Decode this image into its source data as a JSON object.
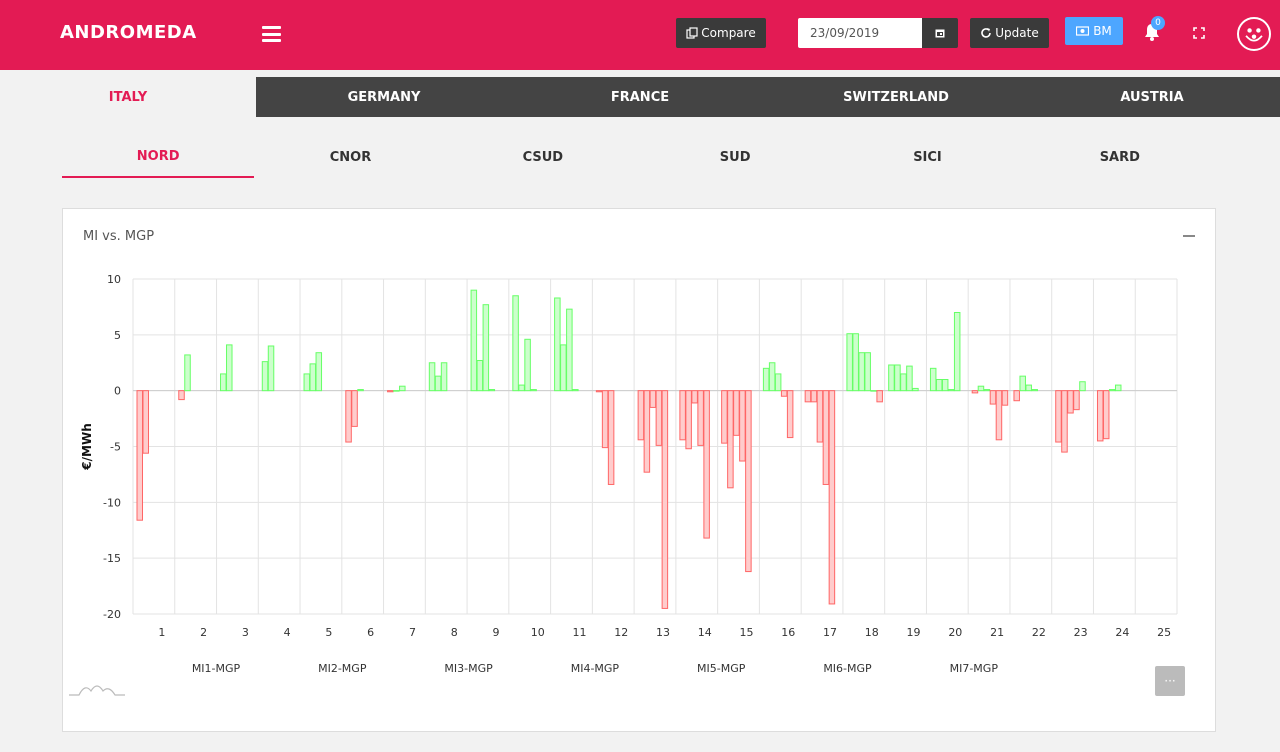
{
  "header": {
    "brand": "ANDROMEDA",
    "compare_label": "Compare",
    "date_value": "23/09/2019",
    "update_label": "Update",
    "bm_label": "BM",
    "notification_count": "0",
    "brand_color": "#e31b54"
  },
  "country_tabs": [
    {
      "label": "ITALY",
      "active": true
    },
    {
      "label": "GERMANY",
      "active": false
    },
    {
      "label": "FRANCE",
      "active": false
    },
    {
      "label": "SWITZERLAND",
      "active": false
    },
    {
      "label": "AUSTRIA",
      "active": false
    }
  ],
  "zone_tabs": [
    {
      "label": "NORD",
      "active": true
    },
    {
      "label": "CNOR",
      "active": false
    },
    {
      "label": "CSUD",
      "active": false
    },
    {
      "label": "SUD",
      "active": false
    },
    {
      "label": "SICI",
      "active": false
    },
    {
      "label": "SARD",
      "active": false
    }
  ],
  "card": {
    "title": "MI vs. MGP",
    "more_label": "···"
  },
  "chart_data": {
    "type": "bar",
    "title": "MI vs. MGP",
    "ylabel": "€/MWh",
    "ylim": [
      -20,
      10
    ],
    "yticks": [
      10,
      5,
      0,
      -5,
      -10,
      -15,
      -20
    ],
    "categories": [
      "1",
      "2",
      "3",
      "4",
      "5",
      "6",
      "7",
      "8",
      "9",
      "10",
      "11",
      "12",
      "13",
      "14",
      "15",
      "16",
      "17",
      "18",
      "19",
      "20",
      "21",
      "22",
      "23",
      "24",
      "25"
    ],
    "positive_color": "#66ff66",
    "negative_color": "#ff6666",
    "series": [
      {
        "name": "MI1-MGP",
        "values": [
          -11.6,
          -0.8,
          1.5,
          2.6,
          1.5,
          -4.6,
          -0.1,
          2.5,
          9.0,
          8.5,
          8.3,
          -0.1,
          -4.4,
          -4.4,
          -4.7,
          2.0,
          -1.0,
          5.1,
          2.3,
          2.0,
          -0.2,
          -0.9,
          -4.6,
          -4.5,
          null
        ]
      },
      {
        "name": "MI2-MGP",
        "values": [
          -5.6,
          3.2,
          4.1,
          4.0,
          2.4,
          -3.2,
          0.0,
          1.3,
          2.7,
          0.5,
          4.1,
          -5.1,
          -7.3,
          -5.2,
          -8.7,
          2.5,
          -1.0,
          5.1,
          2.3,
          1.0,
          0.4,
          1.3,
          -5.5,
          -4.3,
          null
        ]
      },
      {
        "name": "MI3-MGP",
        "values": [
          null,
          null,
          null,
          null,
          3.4,
          0.1,
          0.4,
          2.5,
          7.7,
          4.6,
          7.3,
          -8.4,
          -1.5,
          -1.1,
          -4.0,
          1.5,
          -4.6,
          3.4,
          1.5,
          1.0,
          0.1,
          0.5,
          -2.0,
          0.1,
          null
        ]
      },
      {
        "name": "MI4-MGP",
        "values": [
          null,
          null,
          null,
          null,
          null,
          null,
          null,
          null,
          0.1,
          0.1,
          0.1,
          null,
          -4.9,
          -4.9,
          -6.3,
          -0.5,
          -8.4,
          3.4,
          2.2,
          0.1,
          -1.2,
          0.1,
          -1.7,
          0.5,
          null
        ]
      },
      {
        "name": "MI5-MGP",
        "values": [
          null,
          null,
          null,
          null,
          null,
          null,
          null,
          null,
          null,
          null,
          null,
          null,
          -19.5,
          -13.2,
          -16.2,
          -4.2,
          -19.1,
          0.0,
          0.2,
          7.0,
          -4.4,
          null,
          0.8,
          null,
          null
        ]
      },
      {
        "name": "MI6-MGP",
        "values": [
          null,
          null,
          null,
          null,
          null,
          null,
          null,
          null,
          null,
          null,
          null,
          null,
          null,
          null,
          null,
          null,
          null,
          -1.0,
          null,
          null,
          -1.3,
          null,
          null,
          null,
          null
        ]
      },
      {
        "name": "MI7-MGP",
        "values": [
          null,
          null,
          null,
          null,
          null,
          null,
          null,
          null,
          null,
          null,
          null,
          null,
          null,
          null,
          null,
          null,
          null,
          null,
          null,
          null,
          null,
          null,
          null,
          null,
          null
        ]
      }
    ],
    "grid": true
  }
}
